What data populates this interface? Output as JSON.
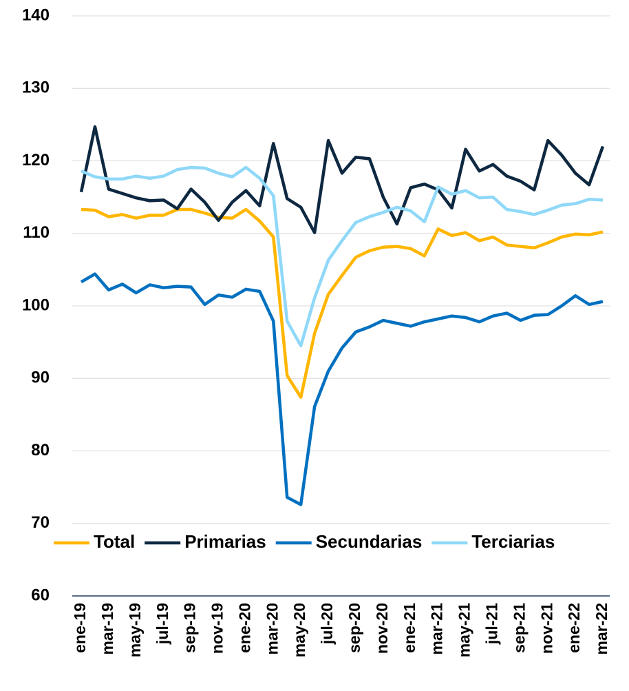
{
  "chart_data": {
    "type": "line",
    "categories": [
      "ene-19",
      null,
      "mar-19",
      null,
      "may-19",
      null,
      "jul-19",
      null,
      "sep-19",
      null,
      "nov-19",
      null,
      "ene-20",
      null,
      "mar-20",
      null,
      "may-20",
      null,
      "jul-20",
      null,
      "sep-20",
      null,
      "nov-20",
      null,
      "ene-21",
      null,
      "mar-21",
      null,
      "may-21",
      null,
      "jul-21",
      null,
      "sep-21",
      null,
      "nov-21",
      null,
      "ene-22",
      null,
      "mar-22"
    ],
    "series": [
      {
        "name": "Total",
        "color": "#FFB600",
        "values": [
          113.3,
          113.2,
          112.3,
          112.6,
          112.1,
          112.5,
          112.5,
          113.3,
          113.3,
          112.8,
          112.2,
          112.1,
          113.3,
          111.7,
          109.5,
          90.4,
          87.4,
          96.2,
          101.6,
          104.2,
          106.7,
          107.6,
          108.1,
          108.2,
          107.9,
          106.9,
          110.6,
          109.7,
          110.1,
          109.0,
          109.5,
          108.4,
          108.2,
          108.0,
          108.7,
          109.5,
          109.9,
          109.8,
          110.2
        ]
      },
      {
        "name": "Primarias",
        "color": "#0E2841",
        "values": [
          115.7,
          124.7,
          116.1,
          115.5,
          114.9,
          114.5,
          114.6,
          113.4,
          116.1,
          114.3,
          111.8,
          114.3,
          115.9,
          113.8,
          122.4,
          114.8,
          113.6,
          110.1,
          122.8,
          118.3,
          120.5,
          120.3,
          115.0,
          111.3,
          116.3,
          116.8,
          116.0,
          113.5,
          121.6,
          118.6,
          119.5,
          117.9,
          117.2,
          116.0,
          122.8,
          120.8,
          118.3,
          116.7,
          122.0
        ]
      },
      {
        "name": "Secundarias",
        "color": "#0070C0",
        "values": [
          103.3,
          104.4,
          102.2,
          103.0,
          101.8,
          102.9,
          102.5,
          102.7,
          102.6,
          100.2,
          101.5,
          101.2,
          102.3,
          102.0,
          97.9,
          73.6,
          72.6,
          86.1,
          91.0,
          94.2,
          96.4,
          97.1,
          98.0,
          97.6,
          97.2,
          97.8,
          98.2,
          98.6,
          98.4,
          97.8,
          98.6,
          99.0,
          98.0,
          98.7,
          98.8,
          100.0,
          101.4,
          100.2,
          100.6
        ]
      },
      {
        "name": "Terciarias",
        "color": "#8FD8F8",
        "values": [
          118.6,
          117.8,
          117.5,
          117.5,
          117.9,
          117.6,
          117.9,
          118.8,
          119.1,
          119.0,
          118.3,
          117.8,
          119.1,
          117.6,
          115.2,
          97.9,
          94.5,
          101.1,
          106.3,
          109.0,
          111.5,
          112.3,
          112.9,
          113.6,
          113.1,
          111.6,
          116.4,
          115.4,
          115.9,
          114.9,
          115.0,
          113.3,
          113.0,
          112.6,
          113.2,
          113.9,
          114.1,
          114.7,
          114.6
        ]
      }
    ],
    "ylim": [
      60,
      140
    ],
    "yticks": [
      60,
      70,
      80,
      90,
      100,
      110,
      120,
      130,
      140
    ],
    "grid": true
  }
}
